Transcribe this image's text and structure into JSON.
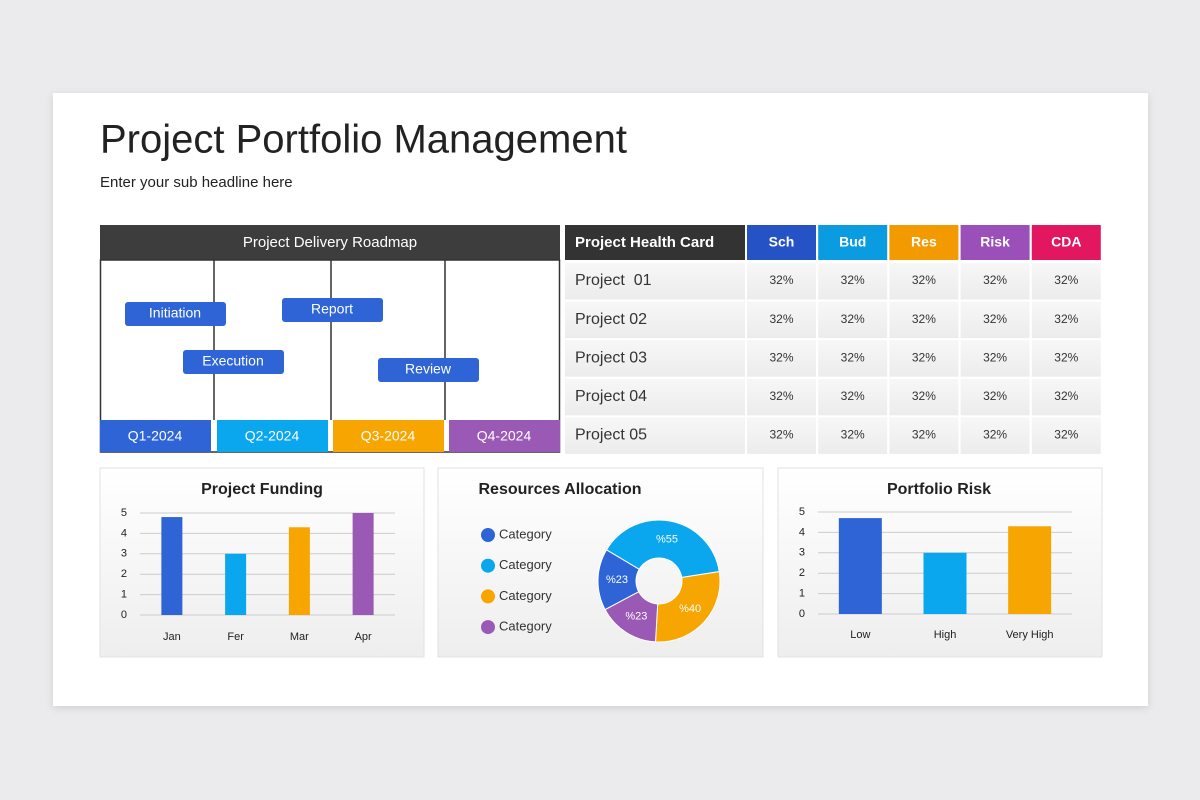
{
  "header": {
    "title": "Project Portfolio Management",
    "subtitle": "Enter your sub headline here"
  },
  "roadmap": {
    "title": "Project Delivery Roadmap",
    "quarters": [
      {
        "label": "Q1-2024",
        "color": "#2e64d6"
      },
      {
        "label": "Q2-2024",
        "color": "#0aa6ee"
      },
      {
        "label": "Q3-2024",
        "color": "#f7a500"
      },
      {
        "label": "Q4-2024",
        "color": "#9b59b6"
      }
    ],
    "tasks": [
      "Initiation",
      "Report",
      "Execution",
      "Review"
    ]
  },
  "health_card": {
    "title": "Project Health Card",
    "columns": [
      {
        "label": "Sch",
        "color": "#2553c6"
      },
      {
        "label": "Bud",
        "color": "#0a9be0"
      },
      {
        "label": "Res",
        "color": "#f29a00"
      },
      {
        "label": "Risk",
        "color": "#9b4fb8"
      },
      {
        "label": "CDA",
        "color": "#e3175f"
      }
    ],
    "rows": [
      {
        "name": "Project  01",
        "cells": [
          "32%",
          "32%",
          "32%",
          "32%",
          "32%"
        ]
      },
      {
        "name": "Project 02",
        "cells": [
          "32%",
          "32%",
          "32%",
          "32%",
          "32%"
        ]
      },
      {
        "name": "Project 03",
        "cells": [
          "32%",
          "32%",
          "32%",
          "32%",
          "32%"
        ]
      },
      {
        "name": "Project 04",
        "cells": [
          "32%",
          "32%",
          "32%",
          "32%",
          "32%"
        ]
      },
      {
        "name": "Project 05",
        "cells": [
          "32%",
          "32%",
          "32%",
          "32%",
          "32%"
        ]
      }
    ]
  },
  "chart_data": [
    {
      "type": "bar",
      "title": "Project Funding",
      "categories": [
        "Jan",
        "Fer",
        "Mar",
        "Apr"
      ],
      "values": [
        4.8,
        3,
        4.3,
        5
      ],
      "colors": [
        "#2e64d6",
        "#0aa6ee",
        "#f7a500",
        "#9b59b6"
      ],
      "ylim": [
        0,
        5
      ],
      "yticks": [
        0,
        1,
        2,
        3,
        4,
        5
      ],
      "grid": true
    },
    {
      "type": "pie",
      "title": "Resources Allocation",
      "categories": [
        "Category",
        "Category",
        "Category",
        "Category"
      ],
      "values": [
        23,
        55,
        40,
        23
      ],
      "value_labels": [
        "%23",
        "%55",
        "%40",
        "%23"
      ],
      "colors": [
        "#2e64d6",
        "#0aa6ee",
        "#f7a500",
        "#9b59b6"
      ],
      "donut": true
    },
    {
      "type": "bar",
      "title": "Portfolio Risk",
      "categories": [
        "Low",
        "High",
        "Very High"
      ],
      "values": [
        4.7,
        3,
        4.3
      ],
      "colors": [
        "#2e64d6",
        "#0aa6ee",
        "#f7a500"
      ],
      "ylim": [
        0,
        5
      ],
      "yticks": [
        0,
        1,
        2,
        3,
        4,
        5
      ],
      "grid": true
    }
  ]
}
